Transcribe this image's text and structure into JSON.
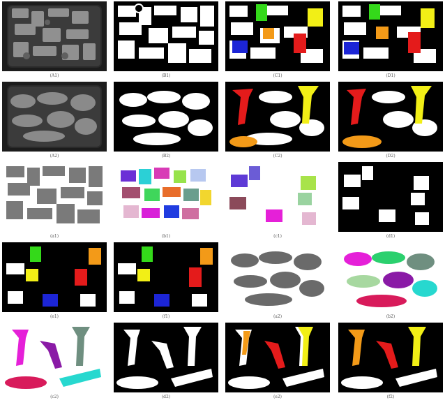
{
  "figure": {
    "rows": [
      [
        "(A1)",
        "(B1)",
        "(C1)",
        "(D1)"
      ],
      [
        "(A2)",
        "(B2)",
        "(C2)",
        "(D2)"
      ],
      [
        "(a1)",
        "(b1)",
        "(c1)",
        "(d1)"
      ],
      [
        "(e1)",
        "(f1)",
        "(a2)",
        "(b2)"
      ],
      [
        "(c2)",
        "(d2)",
        "(e2)",
        "(f2)"
      ]
    ]
  },
  "colors": {
    "black": "#000000",
    "white": "#ffffff",
    "gray": "#7a7a7a",
    "green": "#34d91a",
    "yellow": "#f2ef16",
    "orange": "#f39a18",
    "red": "#e41b1b",
    "blue": "#1c25d6",
    "magenta": "#e520d8",
    "purple": "#8a1aa6",
    "teal": "#27d8cf",
    "slate": "#6f8f80",
    "crimson": "#d81b5b"
  }
}
